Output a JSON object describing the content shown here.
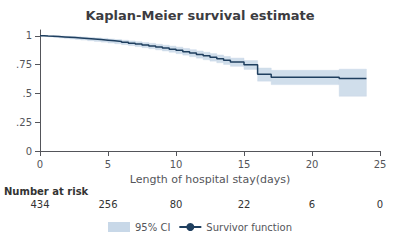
{
  "chart_data": {
    "type": "line",
    "title": "Kaplan-Meier survival estimate",
    "xlabel": "Length of hospital stay(days)",
    "x": [
      0,
      0.3,
      0.6,
      1.0,
      1.4,
      1.8,
      2.2,
      2.6,
      3.0,
      3.5,
      4.0,
      4.5,
      5.0,
      5.5,
      6.0,
      6.5,
      7.0,
      7.5,
      8.0,
      8.5,
      9.0,
      9.5,
      10.0,
      10.5,
      11.0,
      11.5,
      12.0,
      12.5,
      13.0,
      13.5,
      14.0,
      15.0,
      16.0,
      17.0,
      22.0,
      24.0
    ],
    "series": [
      {
        "name": "95% CI",
        "type": "band",
        "color": "#c8d8e8",
        "upper": [
          1.0,
          1.0,
          1.0,
          0.999,
          0.998,
          0.996,
          0.994,
          0.992,
          0.989,
          0.985,
          0.981,
          0.977,
          0.972,
          0.967,
          0.961,
          0.955,
          0.948,
          0.941,
          0.934,
          0.926,
          0.918,
          0.91,
          0.901,
          0.89,
          0.879,
          0.868,
          0.857,
          0.845,
          0.833,
          0.82,
          0.806,
          0.785,
          0.72,
          0.7,
          0.71,
          0.71
        ],
        "lower": [
          1.0,
          0.996,
          0.991,
          0.986,
          0.981,
          0.977,
          0.972,
          0.968,
          0.963,
          0.957,
          0.951,
          0.945,
          0.938,
          0.931,
          0.923,
          0.915,
          0.906,
          0.897,
          0.888,
          0.878,
          0.868,
          0.857,
          0.845,
          0.832,
          0.819,
          0.806,
          0.792,
          0.78,
          0.766,
          0.751,
          0.735,
          0.708,
          0.606,
          0.576,
          0.475,
          0.475
        ]
      },
      {
        "name": "Survivor function",
        "type": "line",
        "line_style": "step",
        "color": "#1f3f5f",
        "values": [
          1.0,
          0.998,
          0.996,
          0.993,
          0.99,
          0.987,
          0.984,
          0.981,
          0.977,
          0.972,
          0.967,
          0.962,
          0.956,
          0.95,
          0.943,
          0.936,
          0.928,
          0.92,
          0.912,
          0.903,
          0.894,
          0.884,
          0.874,
          0.862,
          0.85,
          0.838,
          0.826,
          0.814,
          0.801,
          0.787,
          0.772,
          0.748,
          0.665,
          0.64,
          0.63,
          0.63
        ]
      }
    ],
    "xlim": [
      0,
      25
    ],
    "ylim": [
      0,
      1.05
    ],
    "xticks": [
      0,
      5,
      10,
      15,
      20,
      25
    ],
    "yticks": [
      0,
      {
        "value": 0.25,
        "label": ".25"
      },
      {
        "value": 0.5,
        "label": ".5"
      },
      {
        "value": 0.75,
        "label": ".75"
      },
      1
    ],
    "grid": false,
    "legend": "bottom",
    "number_at_risk": {
      "label": "Number at risk",
      "x": [
        0,
        5,
        10,
        15,
        20,
        25
      ],
      "values": [
        434,
        256,
        80,
        22,
        6,
        0
      ]
    }
  }
}
